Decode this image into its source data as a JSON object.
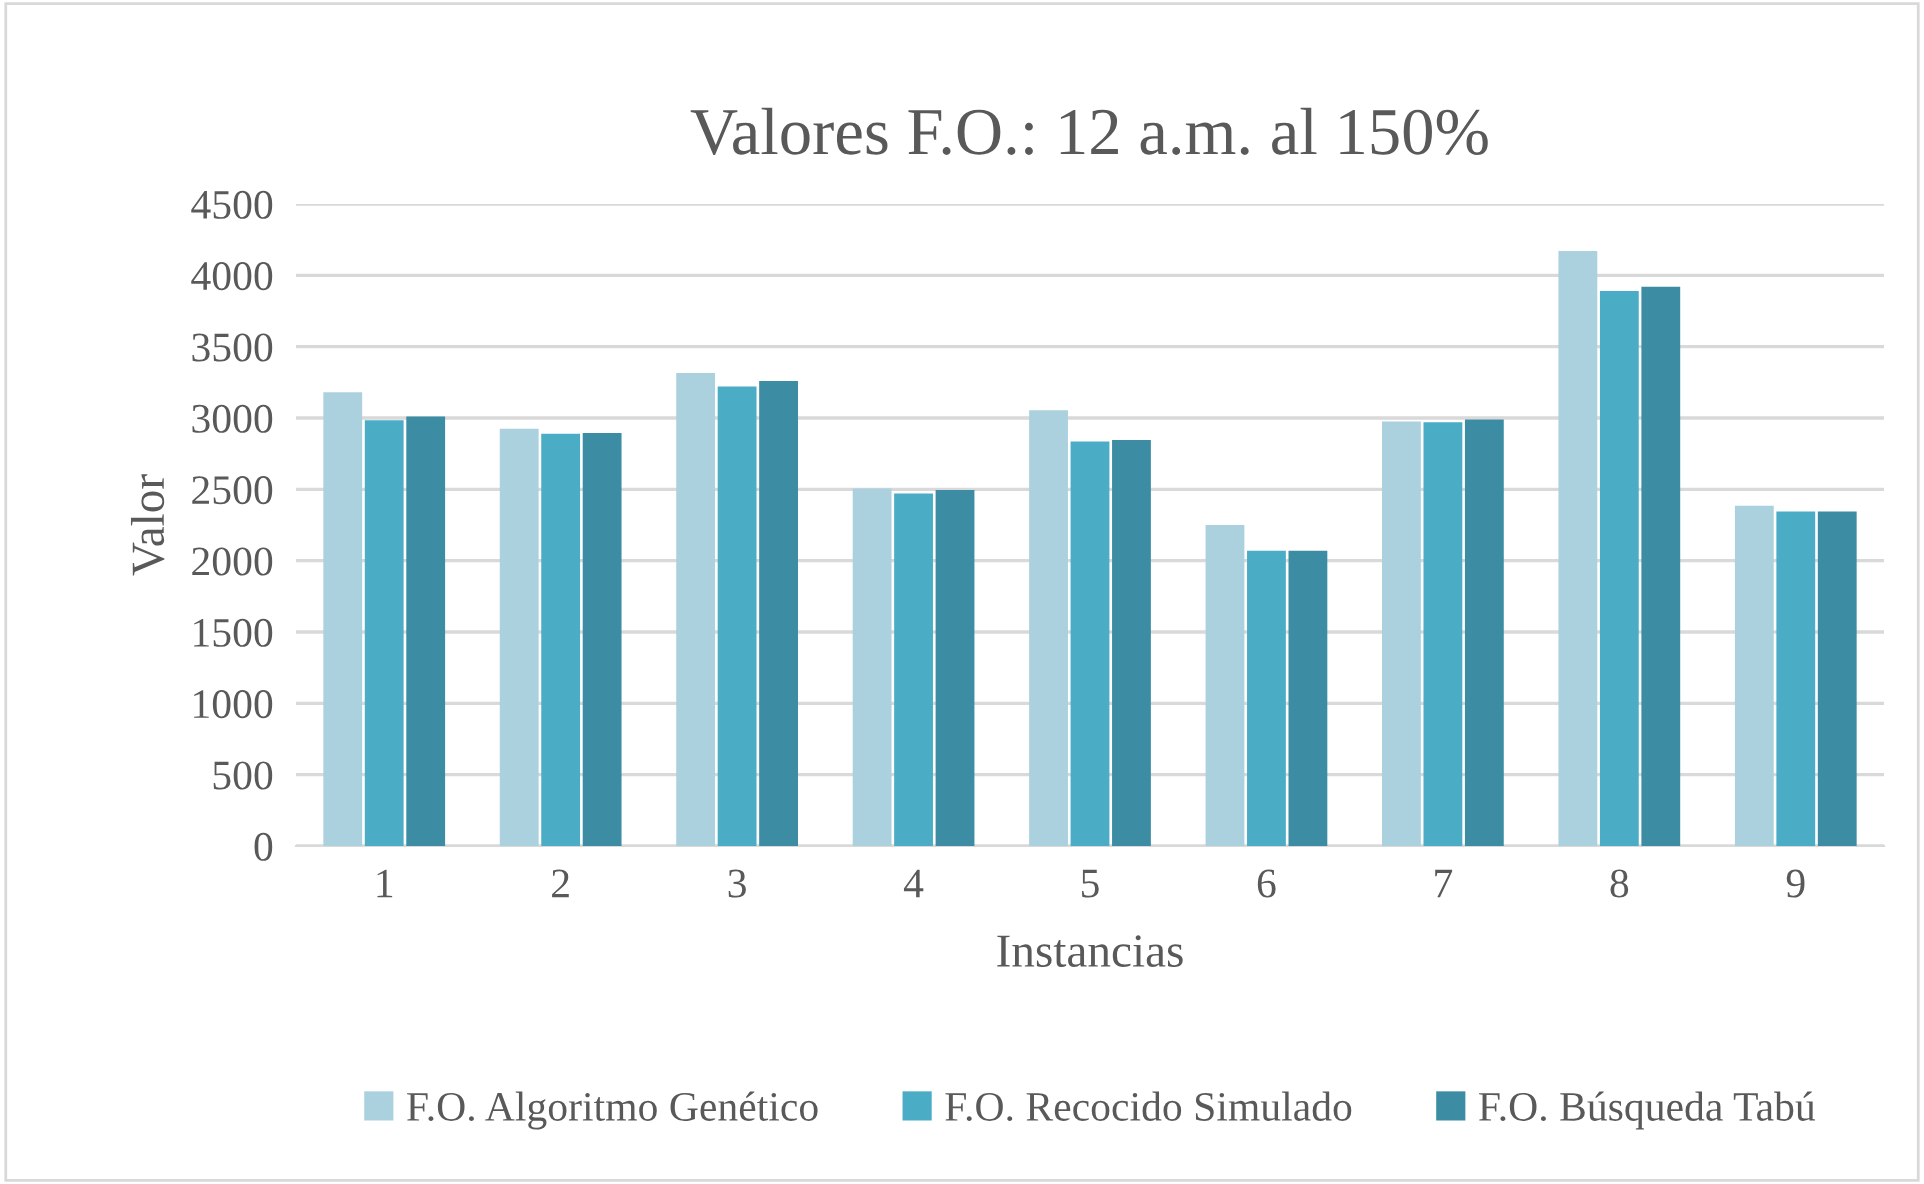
{
  "chart_data": {
    "type": "bar",
    "title": "Valores F.O.: 12 a.m. al 150%",
    "xlabel": "Instancias",
    "ylabel": "Valor",
    "categories": [
      "1",
      "2",
      "3",
      "4",
      "5",
      "6",
      "7",
      "8",
      "9"
    ],
    "series": [
      {
        "name": "F.O. Algoritmo Genético",
        "color": "#abd0de",
        "values": [
          3180,
          2925,
          3315,
          2505,
          3055,
          2250,
          2975,
          4170,
          2385
        ]
      },
      {
        "name": "F.O. Recocido Simulado",
        "color": "#4bacc6",
        "values": [
          2985,
          2890,
          3220,
          2470,
          2835,
          2070,
          2970,
          3890,
          2345
        ]
      },
      {
        "name": "F.O. Búsqueda Tabú",
        "color": "#3c8ca4",
        "values": [
          3010,
          2895,
          3260,
          2495,
          2845,
          2070,
          2990,
          3920,
          2345
        ]
      }
    ],
    "ylim": [
      0,
      4500
    ],
    "yticks": [
      0,
      500,
      1000,
      1500,
      2000,
      2500,
      3000,
      3500,
      4000,
      4500
    ],
    "grid": "y",
    "legend": "bottom"
  }
}
